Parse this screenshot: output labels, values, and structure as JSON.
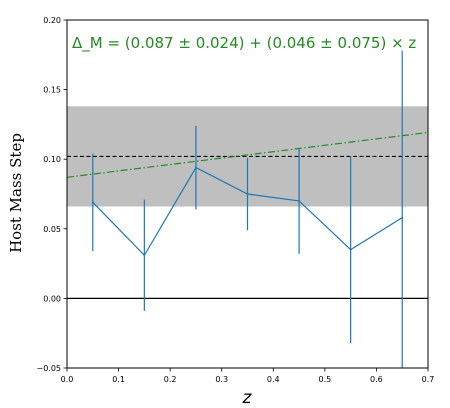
{
  "chart_data": {
    "type": "line",
    "xlabel": "z",
    "ylabel": "Host Mass Step",
    "xlim": [
      0.0,
      0.7
    ],
    "ylim": [
      -0.05,
      0.2
    ],
    "xticks": [
      0.0,
      0.1,
      0.2,
      0.3,
      0.4,
      0.5,
      0.6,
      0.7
    ],
    "yticks": [
      -0.05,
      0.0,
      0.05,
      0.1,
      0.15,
      0.2
    ],
    "xtick_labels": [
      "0.0",
      "0.1",
      "0.2",
      "0.3",
      "0.4",
      "0.5",
      "0.6",
      "0.7"
    ],
    "ytick_labels": [
      "−0.05",
      "0.00",
      "0.05",
      "0.10",
      "0.15",
      "0.20"
    ],
    "series": [
      {
        "color": "#1f77b4",
        "x": [
          0.05,
          0.15,
          0.25,
          0.35,
          0.45,
          0.55,
          0.65
        ],
        "y": [
          0.069,
          0.031,
          0.094,
          0.075,
          0.07,
          0.035,
          0.058
        ],
        "err": [
          0.035,
          0.04,
          0.03,
          0.026,
          0.038,
          0.067,
          0.12
        ]
      }
    ],
    "mean_line": {
      "y": 0.102,
      "color": "#000000",
      "style": "dashed"
    },
    "mean_band": {
      "ymin": 0.066,
      "ymax": 0.138,
      "color": "#bfbfbf"
    },
    "zero_line": {
      "y": 0.0,
      "color": "#000000"
    },
    "fit_line": {
      "intercept": 0.087,
      "slope": 0.046,
      "color": "#228B22",
      "style": "dashdot",
      "label": "Δ_M = (0.087 ± 0.024) + (0.046 ± 0.075) × z"
    },
    "grid": false,
    "legend": "none"
  }
}
